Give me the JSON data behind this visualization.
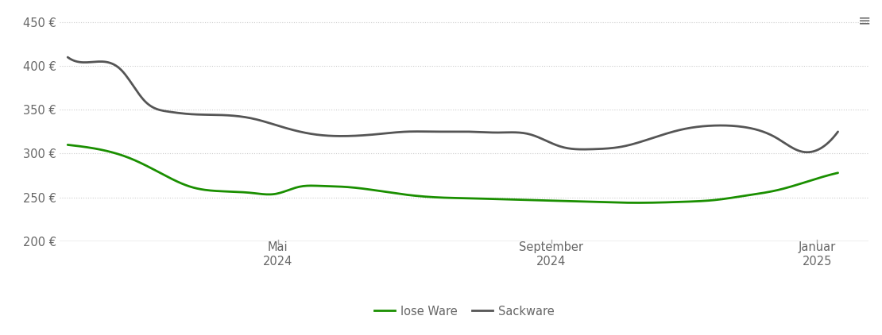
{
  "title": "",
  "ylabel": "",
  "xlabel": "",
  "ylim": [
    200,
    460
  ],
  "yticks": [
    200,
    250,
    300,
    350,
    400,
    450
  ],
  "ytick_labels": [
    "200 €",
    "250 €",
    "300 €",
    "350 €",
    "400 €",
    "450 €"
  ],
  "background_color": "#ffffff",
  "grid_color": "#cccccc",
  "legend_labels": [
    "lose Ware",
    "Sackware"
  ],
  "line_lose_ware": {
    "color": "#1a8f00",
    "linewidth": 2.0,
    "x": [
      0,
      0.04,
      0.08,
      0.12,
      0.16,
      0.2,
      0.24,
      0.27,
      0.3,
      0.33,
      0.36,
      0.4,
      0.44,
      0.48,
      0.52,
      0.56,
      0.6,
      0.64,
      0.68,
      0.72,
      0.76,
      0.8,
      0.84,
      0.88,
      0.92,
      0.96,
      1.0
    ],
    "y": [
      310,
      305,
      295,
      278,
      262,
      257,
      255,
      254,
      262,
      263,
      262,
      258,
      253,
      250,
      249,
      248,
      247,
      246,
      245,
      244,
      244,
      245,
      247,
      252,
      258,
      268,
      278
    ]
  },
  "line_sackware": {
    "color": "#555555",
    "linewidth": 2.0,
    "x": [
      0,
      0.04,
      0.07,
      0.1,
      0.13,
      0.16,
      0.2,
      0.24,
      0.28,
      0.32,
      0.36,
      0.4,
      0.44,
      0.48,
      0.52,
      0.56,
      0.6,
      0.64,
      0.68,
      0.72,
      0.76,
      0.8,
      0.84,
      0.88,
      0.92,
      0.95,
      0.97,
      1.0
    ],
    "y": [
      410,
      405,
      395,
      360,
      348,
      345,
      344,
      340,
      330,
      322,
      320,
      322,
      325,
      325,
      325,
      324,
      322,
      308,
      305,
      308,
      318,
      328,
      332,
      330,
      318,
      303,
      303,
      325
    ]
  },
  "xtick_positions": [
    0.273,
    0.628,
    0.973
  ],
  "xtick_line1": [
    "Mai",
    "September",
    "Januar"
  ],
  "xtick_line2": [
    "2024",
    "2024",
    "2025"
  ],
  "bottom_spine_color": "#aaaaaa",
  "tick_color": "#aaaaaa",
  "label_color": "#666666",
  "menu_icon_color": "#666666"
}
